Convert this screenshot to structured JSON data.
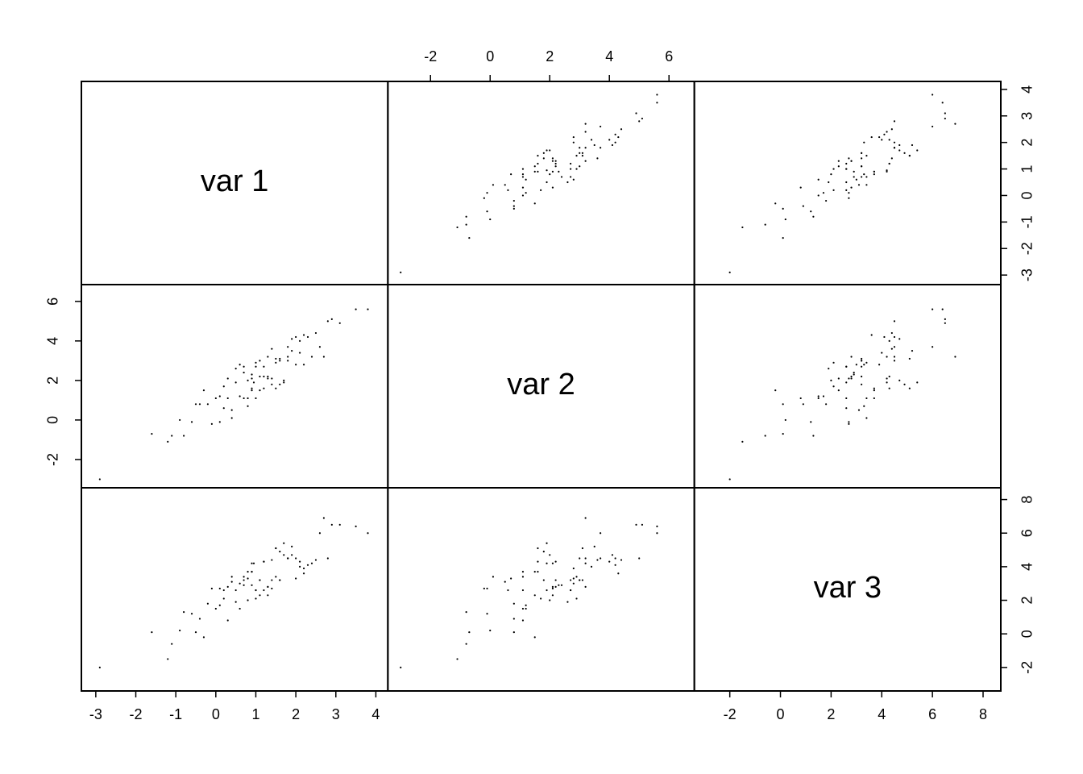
{
  "chart_data": {
    "type": "scatter_matrix",
    "color": "#000000",
    "variables": [
      {
        "name": "var 1",
        "lim": [
          -3.36,
          4.3
        ],
        "ticks": [
          -3,
          -2,
          -1,
          0,
          1,
          2,
          3,
          4
        ],
        "values": [
          1.2,
          0.4,
          1.8,
          -0.3,
          0.9,
          2.1,
          1.5,
          0.1,
          1.0,
          2.6,
          -0.8,
          0.7,
          1.3,
          1.9,
          0.5,
          -0.1,
          1.1,
          2.3,
          0.8,
          1.6,
          3.1,
          -1.2,
          0.3,
          1.4,
          0.9,
          2.0,
          0.6,
          1.7,
          -0.5,
          1.2,
          2.8,
          0.2,
          1.0,
          1.5,
          0.0,
          2.2,
          0.7,
          1.3,
          -1.6,
          1.8,
          0.9,
          3.5,
          0.4,
          1.1,
          2.4,
          -0.2,
          1.6,
          0.8,
          1.9,
          0.3,
          1.0,
          2.7,
          -0.9,
          1.4,
          0.6,
          2.1,
          1.2,
          0.5,
          3.8,
          -2.9,
          1.7,
          0.9,
          2.5,
          -0.6,
          1.3,
          0.1,
          1.8,
          2.2,
          0.7,
          1.5,
          -0.4,
          1.1,
          2.9,
          0.8,
          1.6,
          0.2,
          2.0,
          1.4,
          -1.1,
          0.95
        ]
      },
      {
        "name": "var 2",
        "lim": [
          -3.43,
          6.85
        ],
        "ticks": [
          -2,
          0,
          2,
          4,
          6
        ],
        "values": [
          2.7,
          0.5,
          3.2,
          1.5,
          1.5,
          4.0,
          1.6,
          1.2,
          2.9,
          3.7,
          -0.8,
          2.4,
          2.1,
          3.5,
          2.6,
          -0.2,
          2.2,
          4.2,
          0.7,
          3.0,
          4.9,
          -1.1,
          2.1,
          1.8,
          2.1,
          4.2,
          1.2,
          2.0,
          0.8,
          2.2,
          5.0,
          0.6,
          1.1,
          3.1,
          1.1,
          2.8,
          2.7,
          2.2,
          -0.7,
          3.7,
          1.6,
          5.6,
          0.1,
          3.0,
          3.2,
          0.8,
          3.1,
          1.1,
          4.1,
          1.1,
          2.7,
          3.2,
          0.0,
          2.1,
          2.8,
          3.4,
          1.6,
          1.9,
          5.6,
          -3.0,
          1.9,
          2.3,
          4.4,
          -0.1,
          3.2,
          -0.1,
          3.0,
          4.3,
          1.1,
          2.9,
          0.8,
          1.5,
          5.1,
          2.0,
          1.8,
          1.7,
          2.8,
          3.6,
          -0.8,
          1.9
        ]
      },
      {
        "name": "var 3",
        "lim": [
          -3.4,
          8.7
        ],
        "ticks": [
          -2,
          0,
          2,
          4,
          6,
          8
        ],
        "values": [
          2.6,
          3.1,
          4.5,
          -0.2,
          3.7,
          4.3,
          5.1,
          1.7,
          2.1,
          6.0,
          1.3,
          2.9,
          2.3,
          5.2,
          1.9,
          2.7,
          3.2,
          4.1,
          3.3,
          3.2,
          6.5,
          -1.5,
          2.8,
          3.2,
          4.2,
          4.5,
          1.5,
          4.7,
          0.1,
          4.3,
          4.5,
          2.6,
          2.6,
          5.1,
          1.5,
          3.9,
          3.2,
          2.8,
          0.1,
          4.5,
          3.7,
          6.4,
          3.4,
          3.2,
          4.2,
          1.8,
          3.2,
          3.7,
          4.7,
          0.8,
          2.6,
          6.9,
          0.2,
          2.7,
          3.0,
          4.0,
          4.3,
          2.6,
          6.0,
          -2.0,
          5.4,
          2.9,
          4.4,
          1.2,
          2.8,
          2.7,
          4.5,
          3.6,
          3.4,
          3.4,
          0.9,
          2.3,
          6.5,
          2.0,
          4.9,
          2.1,
          3.3,
          4.4,
          -0.6,
          4.2
        ]
      }
    ]
  }
}
